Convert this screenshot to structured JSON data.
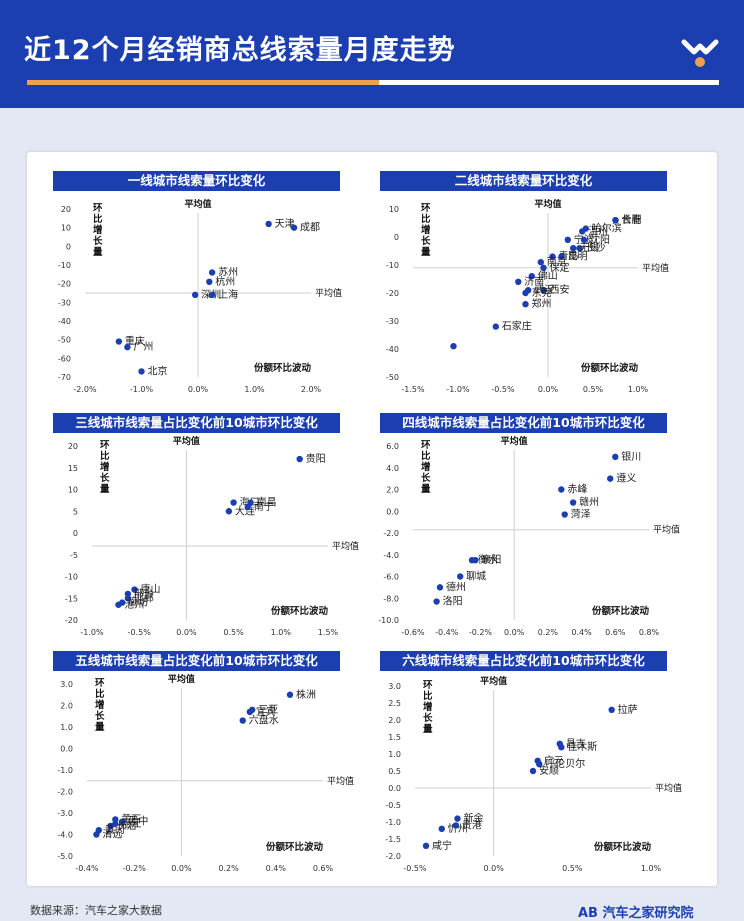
{
  "header": {
    "title": "近12个月经销商总线索量月度走势"
  },
  "footer": {
    "source": "数据来源：汽车之家大数据",
    "brand": "AB 汽车之家研究院"
  },
  "colors": {
    "header_bg": "#1b3fb0",
    "accent_orange": "#f0a04b",
    "point": "#1b3fb0"
  },
  "chart_data": [
    {
      "type": "scatter",
      "title": "一线城市线索量环比变化",
      "ylabel": "环比增长量",
      "xlabel": "份额环比波动",
      "hline_label": "平均值",
      "vline_label": "平均值",
      "xlim": [
        -2.0,
        2.0
      ],
      "ylim": [
        -70,
        20
      ],
      "x_ticks": [
        "-2.0%",
        "-1.0%",
        "0.0%",
        "1.0%",
        "2.0%"
      ],
      "y_ticks": [
        "20",
        "10",
        "0",
        "-10",
        "-20",
        "-30",
        "-40",
        "-50",
        "-60",
        "-70"
      ],
      "avg": {
        "x": 0.0,
        "y": -25
      },
      "points": [
        {
          "label": "天津",
          "x": 1.25,
          "y": 12
        },
        {
          "label": "成都",
          "x": 1.7,
          "y": 10
        },
        {
          "label": "苏州",
          "x": 0.25,
          "y": -14
        },
        {
          "label": "杭州",
          "x": 0.2,
          "y": -19
        },
        {
          "label": "深圳",
          "x": -0.05,
          "y": -26
        },
        {
          "label": "上海",
          "x": 0.25,
          "y": -26
        },
        {
          "label": "重庆",
          "x": -1.4,
          "y": -51
        },
        {
          "label": "广州",
          "x": -1.25,
          "y": -54
        },
        {
          "label": "北京",
          "x": -1.0,
          "y": -67
        }
      ]
    },
    {
      "type": "scatter",
      "title": "二线城市线索量环比变化",
      "ylabel": "环比增长量",
      "xlabel": "份额环比波动",
      "hline_label": "平均值",
      "vline_label": "平均值",
      "xlim": [
        -1.5,
        1.0
      ],
      "ylim": [
        -50,
        10
      ],
      "x_ticks": [
        "-1.5%",
        "-1.0%",
        "-0.5%",
        "0.0%",
        "0.5%",
        "1.0%"
      ],
      "y_ticks": [
        "10",
        "0",
        "-10",
        "-20",
        "-30",
        "-40",
        "-50"
      ],
      "avg": {
        "x": 0.0,
        "y": -11
      },
      "points": [
        {
          "label": "长春",
          "x": 0.75,
          "y": 6
        },
        {
          "label": "合肥",
          "x": 0.75,
          "y": 6
        },
        {
          "label": "哈尔滨",
          "x": 0.42,
          "y": 3
        },
        {
          "label": "温州",
          "x": 0.38,
          "y": 2
        },
        {
          "label": "宁波",
          "x": 0.22,
          "y": -1
        },
        {
          "label": "沈阳",
          "x": 0.4,
          "y": -1
        },
        {
          "label": "长沙",
          "x": 0.35,
          "y": -4
        },
        {
          "label": "无锡",
          "x": 0.28,
          "y": -4
        },
        {
          "label": "青岛",
          "x": 0.05,
          "y": -7
        },
        {
          "label": "昆明",
          "x": 0.15,
          "y": -7
        },
        {
          "label": "南京",
          "x": -0.08,
          "y": -9
        },
        {
          "label": "保定",
          "x": -0.05,
          "y": -11
        },
        {
          "label": "佛山",
          "x": -0.18,
          "y": -14
        },
        {
          "label": "济南",
          "x": -0.33,
          "y": -16
        },
        {
          "label": "西安",
          "x": -0.05,
          "y": -19
        },
        {
          "label": "武汉",
          "x": -0.22,
          "y": -19
        },
        {
          "label": "东莞",
          "x": -0.25,
          "y": -20
        },
        {
          "label": "郑州",
          "x": -0.25,
          "y": -24
        },
        {
          "label": "石家庄",
          "x": -0.58,
          "y": -32
        },
        {
          "label": "",
          "x": -1.05,
          "y": -39
        }
      ]
    },
    {
      "type": "scatter",
      "title": "三线城市线索量占比变化前10城市环比变化",
      "ylabel": "环比增长量",
      "xlabel": "份额环比波动",
      "hline_label": "平均值",
      "vline_label": "平均值",
      "xlim": [
        -1.0,
        1.5
      ],
      "ylim": [
        -20,
        20
      ],
      "x_ticks": [
        "-1.0%",
        "-0.5%",
        "0.0%",
        "0.5%",
        "1.0%",
        "1.5%"
      ],
      "y_ticks": [
        "20",
        "15",
        "10",
        "5",
        "0",
        "-5",
        "-10",
        "-15",
        "-20"
      ],
      "avg": {
        "x": 0.0,
        "y": -3
      },
      "points": [
        {
          "label": "贵阳",
          "x": 1.2,
          "y": 17
        },
        {
          "label": "海口",
          "x": 0.5,
          "y": 7
        },
        {
          "label": "南昌",
          "x": 0.68,
          "y": 7
        },
        {
          "label": "大连",
          "x": 0.45,
          "y": 5
        },
        {
          "label": "南宁",
          "x": 0.65,
          "y": 6
        },
        {
          "label": "唐山",
          "x": -0.55,
          "y": -13
        },
        {
          "label": "邢台",
          "x": -0.62,
          "y": -14
        },
        {
          "label": "邯郸",
          "x": -0.62,
          "y": -15
        },
        {
          "label": "廊坊",
          "x": -0.68,
          "y": -16
        },
        {
          "label": "沧州",
          "x": -0.72,
          "y": -16.5
        }
      ]
    },
    {
      "type": "scatter",
      "title": "四线城市线索量占比变化前10城市环比变化",
      "ylabel": "环比增长量",
      "xlabel": "份额环比波动",
      "hline_label": "平均值",
      "vline_label": "平均值",
      "xlim": [
        -0.6,
        0.8
      ],
      "ylim": [
        -10,
        6
      ],
      "x_ticks": [
        "-0.6%",
        "-0.4%",
        "-0.2%",
        "0.0%",
        "0.2%",
        "0.4%",
        "0.6%",
        "0.8%"
      ],
      "y_ticks": [
        "6.0",
        "4.0",
        "2.0",
        "0.0",
        "-2.0",
        "-4.0",
        "-6.0",
        "-8.0",
        "-10.0"
      ],
      "avg": {
        "x": 0.0,
        "y": -1.7
      },
      "points": [
        {
          "label": "银川",
          "x": 0.6,
          "y": 5
        },
        {
          "label": "遵义",
          "x": 0.57,
          "y": 3
        },
        {
          "label": "赤峰",
          "x": 0.28,
          "y": 2
        },
        {
          "label": "赣州",
          "x": 0.35,
          "y": 0.8
        },
        {
          "label": "菏泽",
          "x": 0.3,
          "y": -0.3
        },
        {
          "label": "衡水",
          "x": -0.25,
          "y": -4.5
        },
        {
          "label": "襄阳",
          "x": -0.23,
          "y": -4.5
        },
        {
          "label": "聊城",
          "x": -0.32,
          "y": -6
        },
        {
          "label": "德州",
          "x": -0.44,
          "y": -7
        },
        {
          "label": "洛阳",
          "x": -0.46,
          "y": -8.3
        }
      ]
    },
    {
      "type": "scatter",
      "title": "五线城市线索量占比变化前10城市环比变化",
      "ylabel": "环比增长量",
      "xlabel": "份额环比波动",
      "hline_label": "平均值",
      "vline_label": "平均值",
      "xlim": [
        -0.4,
        0.6
      ],
      "ylim": [
        -5,
        3
      ],
      "x_ticks": [
        "-0.4%",
        "-0.2%",
        "0.0%",
        "0.2%",
        "0.4%",
        "0.6%"
      ],
      "y_ticks": [
        "3.0",
        "2.0",
        "1.0",
        "0.0",
        "-1.0",
        "-2.0",
        "-3.0",
        "-4.0",
        "-5.0"
      ],
      "avg": {
        "x": 0.0,
        "y": -1.5
      },
      "points": [
        {
          "label": "株洲",
          "x": 0.46,
          "y": 2.5
        },
        {
          "label": "三亚",
          "x": 0.3,
          "y": 1.8
        },
        {
          "label": "宜宾",
          "x": 0.29,
          "y": 1.7
        },
        {
          "label": "六盘水",
          "x": 0.26,
          "y": 1.3
        },
        {
          "label": "黄石",
          "x": -0.28,
          "y": -3.3
        },
        {
          "label": "晋中",
          "x": -0.25,
          "y": -3.4
        },
        {
          "label": "长治",
          "x": -0.3,
          "y": -3.6
        },
        {
          "label": "黄冈",
          "x": -0.35,
          "y": -3.8
        },
        {
          "label": "湛江",
          "x": -0.28,
          "y": -3.5
        },
        {
          "label": "清远",
          "x": -0.36,
          "y": -4.0
        }
      ]
    },
    {
      "type": "scatter",
      "title": "六线城市线索量占比变化前10城市环比变化",
      "ylabel": "环比增长量",
      "xlabel": "份额环比波动",
      "hline_label": "平均值",
      "vline_label": "平均值",
      "xlim": [
        -0.5,
        1.0
      ],
      "ylim": [
        -2,
        3
      ],
      "x_ticks": [
        "-0.5%",
        "0.0%",
        "0.5%",
        "1.0%"
      ],
      "y_ticks": [
        "3.0",
        "2.5",
        "2.0",
        "1.5",
        "1.0",
        "0.5",
        "0.0",
        "-0.5",
        "-1.0",
        "-1.5",
        "-2.0"
      ],
      "avg": {
        "x": 0.0,
        "y": 0.0
      },
      "points": [
        {
          "label": "拉萨",
          "x": 0.75,
          "y": 2.3
        },
        {
          "label": "昌吉",
          "x": 0.42,
          "y": 1.3
        },
        {
          "label": "佳木斯",
          "x": 0.43,
          "y": 1.2
        },
        {
          "label": "广元",
          "x": 0.28,
          "y": 0.8
        },
        {
          "label": "呼伦贝尔",
          "x": 0.29,
          "y": 0.7
        },
        {
          "label": "安顺",
          "x": 0.25,
          "y": 0.5
        },
        {
          "label": "新余",
          "x": -0.23,
          "y": -0.9
        },
        {
          "label": "忻州",
          "x": -0.33,
          "y": -1.2
        },
        {
          "label": "贵港",
          "x": -0.24,
          "y": -1.1
        },
        {
          "label": "咸宁",
          "x": -0.43,
          "y": -1.7
        }
      ]
    }
  ]
}
